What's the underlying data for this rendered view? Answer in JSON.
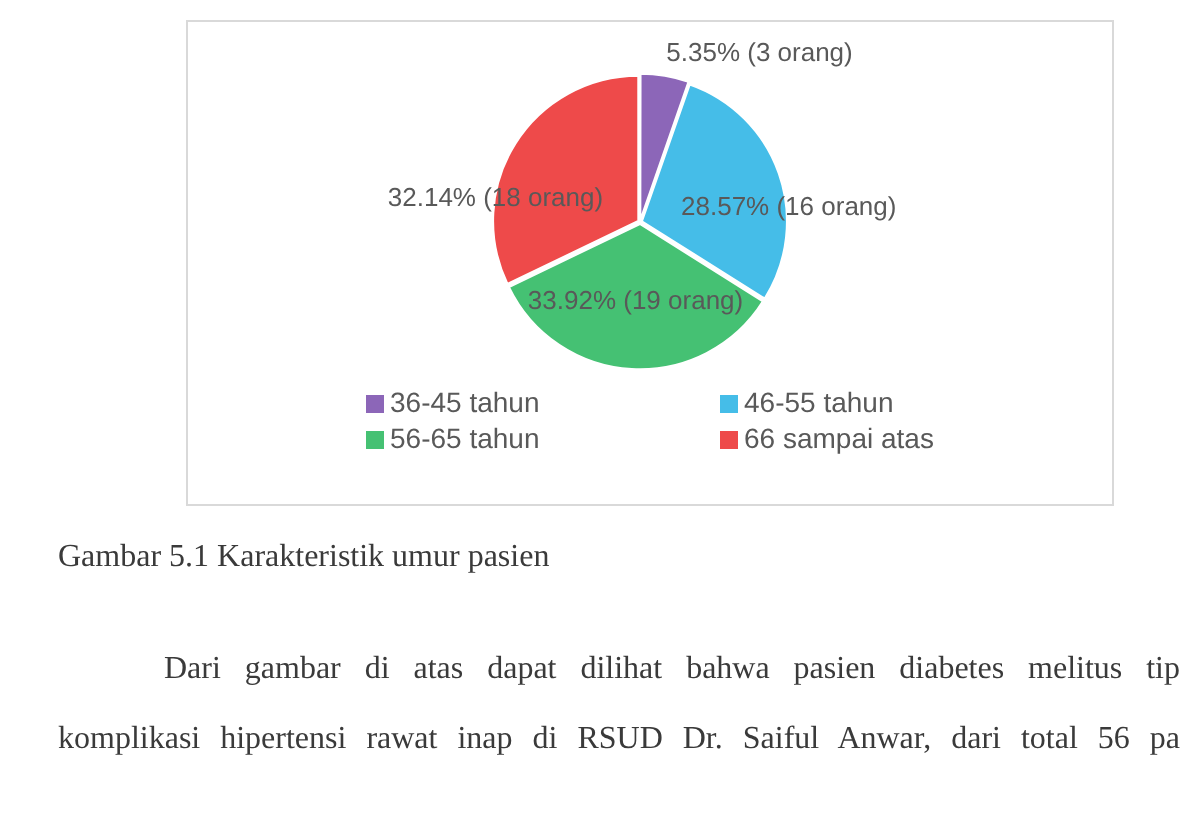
{
  "chart_data": {
    "type": "pie",
    "categories": [
      "36-45 tahun",
      "46-55 tahun",
      "56-65 tahun",
      "66 sampai atas"
    ],
    "values": [
      3,
      16,
      19,
      18
    ],
    "colors": [
      "#8c66b8",
      "#45bde8",
      "#45c173",
      "#ee4a4a"
    ],
    "value_labels": [
      "5.35% (3 orang)",
      "28.57% (16 orang)",
      "33.92% (19 orang)",
      "32.14% (18 orang)"
    ],
    "legend": "bottom",
    "annotations": [
      "Gambar 5.1 Karakteristik umur pasien",
      "Dari gambar di atas dapat dilihat bahwa pasien diabetes melitus tip",
      "komplikasi hipertensi rawat inap di RSUD Dr. Saiful Anwar, dari total 56 pa"
    ]
  }
}
